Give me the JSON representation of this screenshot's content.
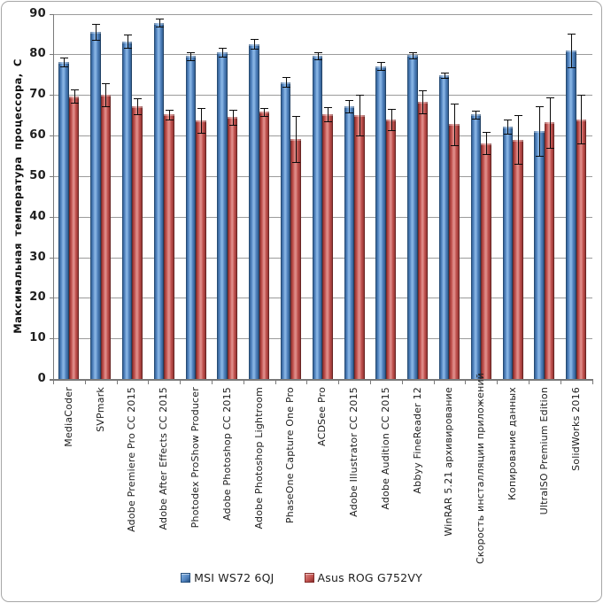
{
  "chart_data": {
    "type": "bar",
    "title": "",
    "xlabel": "",
    "ylabel": "Максимальная температура процессора, С",
    "ylim": [
      0,
      90
    ],
    "yticks": [
      0,
      10,
      20,
      30,
      40,
      50,
      60,
      70,
      80,
      90
    ],
    "grid": true,
    "legend_position": "bottom",
    "error_bars": true,
    "categories": [
      "MediaCoder",
      "SVPmark",
      "Adobe Premiere Pro CC 2015",
      "Adobe After Effects CC 2015",
      "Photodex ProShow Producer",
      "Adobe Photoshop CC 2015",
      "Adobe Photoshop Lightroom",
      "PhaseOne Capture One Pro",
      "ACDSee Pro",
      "Adobe Illustrator CC 2015",
      "Adobe Audition CC 2015",
      "Abbyy FineReader 12",
      "WinRAR 5.21 архивирование",
      "Скорость инсталляции приложений",
      "Копирование данных",
      "UltraISO Premium Edition",
      "SolidWorks 2016"
    ],
    "series": [
      {
        "name": "MSI WS72 6QJ",
        "color": "#4f81bd",
        "color_light": "#85b2e2",
        "color_dark": "#27517f",
        "values": [
          78.2,
          85.5,
          83.2,
          87.8,
          79.6,
          80.5,
          82.5,
          73.1,
          79.6,
          67.2,
          77.1,
          79.8,
          74.9,
          65.2,
          62.2,
          61.0,
          80.9
        ],
        "errors": [
          1.1,
          2.0,
          1.6,
          1.0,
          1.0,
          1.1,
          1.2,
          1.2,
          0.9,
          1.5,
          1.0,
          0.8,
          0.7,
          1.0,
          1.7,
          6.1,
          4.2
        ]
      },
      {
        "name": "Asus ROG G752VY",
        "color": "#c0504d",
        "color_light": "#de8a86",
        "color_dark": "#832c2a",
        "values": [
          69.7,
          70.0,
          67.2,
          65.2,
          63.7,
          64.5,
          65.8,
          59.2,
          65.2,
          65.0,
          63.9,
          68.3,
          62.8,
          58.1,
          59.0,
          63.2,
          64.0
        ],
        "errors": [
          1.6,
          2.9,
          1.9,
          1.2,
          3.0,
          1.9,
          1.0,
          5.7,
          1.8,
          5.1,
          2.6,
          2.9,
          5.1,
          2.7,
          6.0,
          6.2,
          6.0
        ]
      }
    ]
  },
  "colors": {
    "gridline": "#9b9b9b",
    "axis": "#7a7a7a",
    "error_bar": "#0a0a0a",
    "frame_border": "#a7a7a7",
    "background": "#ffffff",
    "text": "#202020"
  }
}
